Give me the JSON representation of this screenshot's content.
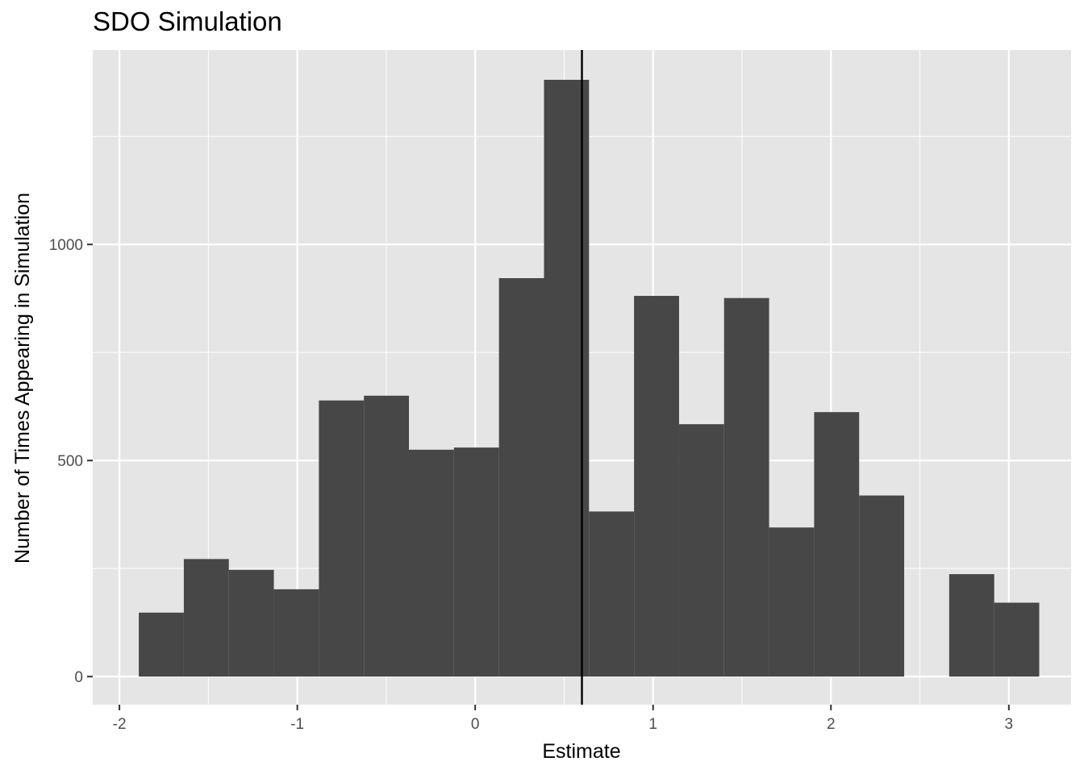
{
  "chart_data": {
    "type": "bar",
    "title": "SDO Simulation",
    "xlabel": "Estimate",
    "ylabel": "Number of Times Appearing in Simulation",
    "xlim": [
      -2.15,
      3.35
    ],
    "ylim": [
      -65,
      1450
    ],
    "xticks": [
      -2,
      -1,
      0,
      1,
      2,
      3
    ],
    "xtick_labels": [
      "-2",
      "-1",
      "0",
      "1",
      "2",
      "3"
    ],
    "yticks": [
      0,
      500,
      1000
    ],
    "ytick_labels": [
      "0",
      "500",
      "1000"
    ],
    "bin_width": 0.2531,
    "bins": [
      {
        "x0": -1.8911,
        "count": 148
      },
      {
        "x0": -1.638,
        "count": 272
      },
      {
        "x0": -1.3849,
        "count": 247
      },
      {
        "x0": -1.1318,
        "count": 202
      },
      {
        "x0": -0.8787,
        "count": 639
      },
      {
        "x0": -0.6256,
        "count": 650
      },
      {
        "x0": -0.3725,
        "count": 525
      },
      {
        "x0": -0.1194,
        "count": 530
      },
      {
        "x0": 0.1337,
        "count": 922
      },
      {
        "x0": 0.3868,
        "count": 1381
      },
      {
        "x0": 0.6399,
        "count": 382
      },
      {
        "x0": 0.893,
        "count": 881
      },
      {
        "x0": 1.1461,
        "count": 584
      },
      {
        "x0": 1.3992,
        "count": 876
      },
      {
        "x0": 1.6523,
        "count": 345
      },
      {
        "x0": 1.9054,
        "count": 612
      },
      {
        "x0": 2.1585,
        "count": 419
      },
      {
        "x0": 2.4116,
        "count": 0
      },
      {
        "x0": 2.6647,
        "count": 237
      },
      {
        "x0": 2.9178,
        "count": 171
      }
    ],
    "vline_x": 0.6,
    "colors": {
      "panel": "#e5e5e5",
      "grid": "#ffffff",
      "bar": "#474747",
      "vline": "#000000",
      "tick_text": "#4d4d4d",
      "tick_mark": "#333333"
    }
  }
}
